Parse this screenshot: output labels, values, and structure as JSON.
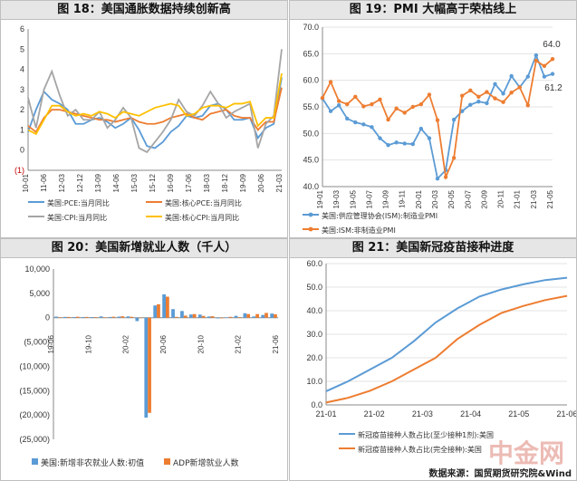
{
  "chart_data": [
    {
      "type": "line",
      "title": "图 18：美国通胀数据持续创新高",
      "ylim": [
        -1,
        6
      ],
      "yticks": [
        "6",
        "5",
        "4",
        "3",
        "2",
        "1",
        "0",
        "(1)"
      ],
      "xticks": [
        "10-01",
        "11-06",
        "12-03",
        "12-12",
        "13-09",
        "14-06",
        "15-03",
        "15-12",
        "16-09",
        "17-06",
        "18-03",
        "18-12",
        "19-09",
        "20-06",
        "21-03"
      ],
      "series": [
        {
          "name": "美国:PCE:当月同比",
          "color": "#5b9bd5",
          "values": [
            0.9,
            2.0,
            2.9,
            2.5,
            2.3,
            2.0,
            1.3,
            1.3,
            1.5,
            1.6,
            1.4,
            1.1,
            1.3,
            1.6,
            1.0,
            0.2,
            0.1,
            0.4,
            0.9,
            1.2,
            1.7,
            1.6,
            1.7,
            2.2,
            2.3,
            2.0,
            1.5,
            1.5,
            1.6,
            0.6,
            1.1,
            1.3,
            3.6
          ]
        },
        {
          "name": "美国:核心PCE:当月同比",
          "color": "#ed7d31",
          "values": [
            1.2,
            0.9,
            1.6,
            2.0,
            2.0,
            1.9,
            1.8,
            1.7,
            1.6,
            1.5,
            1.5,
            1.4,
            1.5,
            1.6,
            1.4,
            1.3,
            1.3,
            1.4,
            1.6,
            1.7,
            1.8,
            1.6,
            1.5,
            1.8,
            1.9,
            2.0,
            1.7,
            1.6,
            1.6,
            1.0,
            1.4,
            1.4,
            3.1
          ]
        },
        {
          "name": "美国:CPI:当月同比",
          "color": "#a5a5a5",
          "values": [
            2.6,
            1.1,
            3.0,
            3.9,
            2.7,
            1.7,
            2.0,
            1.5,
            1.5,
            1.9,
            1.1,
            1.5,
            2.1,
            1.6,
            0.1,
            -0.1,
            0.4,
            0.9,
            1.5,
            2.5,
            1.9,
            1.7,
            2.2,
            2.9,
            2.3,
            1.6,
            1.9,
            2.1,
            2.3,
            0.1,
            1.3,
            1.7,
            5.0
          ]
        },
        {
          "name": "美国:核心CPI:当月同比",
          "color": "#ffc000",
          "values": [
            1.0,
            0.8,
            1.5,
            2.2,
            2.2,
            1.9,
            1.7,
            1.8,
            1.7,
            1.9,
            1.8,
            1.6,
            1.9,
            1.8,
            1.7,
            1.9,
            2.1,
            2.2,
            2.3,
            2.2,
            1.7,
            1.8,
            2.1,
            2.2,
            2.2,
            2.1,
            2.3,
            2.3,
            2.4,
            1.2,
            1.6,
            1.6,
            3.8
          ]
        }
      ]
    },
    {
      "type": "line",
      "title": "图 19：PMI 大幅高于荣枯线上",
      "ylim": [
        40,
        70
      ],
      "yticks": [
        "70.0",
        "65.0",
        "60.0",
        "55.0",
        "50.0",
        "45.0",
        "40.0"
      ],
      "xticks": [
        "19-01",
        "19-03",
        "19-05",
        "19-07",
        "19-09",
        "19-11",
        "20-01",
        "20-03",
        "20-05",
        "20-07",
        "20-09",
        "20-11",
        "21-01",
        "21-03",
        "21-05"
      ],
      "annotations": [
        "64.0",
        "61.2"
      ],
      "series": [
        {
          "name": "美国:供应管理协会(ISM):制造业PMI",
          "color": "#5b9bd5",
          "values": [
            56.6,
            54.2,
            55.3,
            52.8,
            52.1,
            51.7,
            51.2,
            49.1,
            47.8,
            48.3,
            48.1,
            48.0,
            50.9,
            49.1,
            41.5,
            43.1,
            52.6,
            54.2,
            55.4,
            56.0,
            55.7,
            59.3,
            57.5,
            60.8,
            58.7,
            60.7,
            64.7,
            60.7,
            61.2
          ]
        },
        {
          "name": "美国:ISM:非制造业PMI",
          "color": "#ed7d31",
          "values": [
            56.7,
            59.7,
            56.1,
            55.5,
            56.9,
            55.1,
            55.5,
            56.4,
            52.6,
            54.7,
            53.9,
            55.0,
            55.5,
            57.3,
            52.5,
            41.8,
            45.4,
            57.1,
            58.1,
            56.9,
            57.8,
            56.6,
            55.9,
            57.7,
            58.7,
            55.3,
            63.7,
            62.7,
            64.0
          ]
        }
      ]
    },
    {
      "type": "bar",
      "title": "图 20：美国新增就业人数（千人）",
      "ylim": [
        -25000,
        10000
      ],
      "yticks": [
        "10,000",
        "5,000",
        "0",
        "(5,000)",
        "(10,000)",
        "(15,000)",
        "(20,000)",
        "(25,000)"
      ],
      "xticks": [
        "19-06",
        "19-10",
        "20-02",
        "20-06",
        "20-10",
        "21-02",
        "21-06"
      ],
      "series": [
        {
          "name": "美国:新增非农就业人数:初值",
          "color": "#5b9bd5",
          "values": [
            224,
            164,
            130,
            136,
            128,
            266,
            145,
            225,
            273,
            -701,
            -20537,
            2509,
            4800,
            1763,
            1371,
            661,
            638,
            245,
            -140,
            49,
            379,
            916,
            266,
            559,
            850
          ]
        },
        {
          "name": "ADP新增就业人数",
          "color": "#ed7d31",
          "values": [
            102,
            156,
            195,
            157,
            125,
            67,
            202,
            291,
            183,
            -27,
            -19557,
            2760,
            4314,
            167,
            428,
            749,
            365,
            307,
            -123,
            174,
            117,
            742,
            742,
            978,
            692
          ]
        }
      ]
    },
    {
      "type": "line",
      "title": "图 21：美国新冠疫苗接种进度",
      "ylim": [
        0,
        60
      ],
      "yticks": [
        "60.0",
        "50.0",
        "40.0",
        "30.0",
        "20.0",
        "10.0",
        "0.0"
      ],
      "xticks": [
        "21-01",
        "21-02",
        "21-03",
        "21-04",
        "21-05",
        "21-06"
      ],
      "series": [
        {
          "name": "新冠疫苗接种人数占比(至少接种1剂):美国",
          "color": "#5b9bd5",
          "values": [
            5.8,
            10.0,
            15.0,
            20.0,
            27.0,
            35.0,
            41.0,
            46.0,
            49.0,
            51.2,
            53.0,
            54.0
          ]
        },
        {
          "name": "新冠疫苗接种人数占比(完全接种):美国",
          "color": "#ed7d31",
          "values": [
            1.0,
            3.0,
            6.0,
            10.0,
            15.0,
            20.0,
            28.0,
            34.0,
            39.0,
            42.0,
            44.5,
            46.3
          ]
        }
      ]
    }
  ],
  "footer": "数据来源：国贸期货研究院&Wind",
  "watermark": "中金网"
}
